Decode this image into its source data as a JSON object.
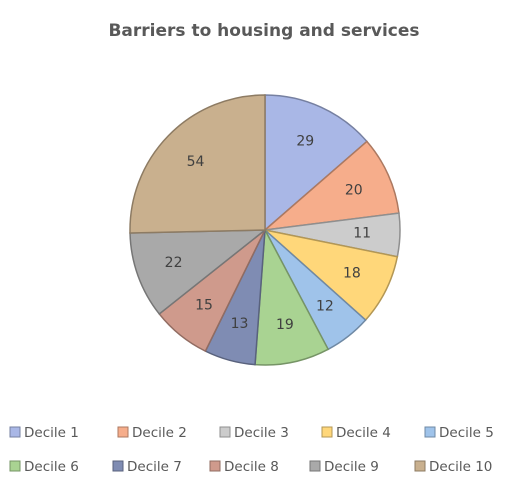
{
  "chart_data": {
    "type": "pie",
    "title": "Barriers to housing and services",
    "categories": [
      "Decile 1",
      "Decile 2",
      "Decile 3",
      "Decile 4",
      "Decile 5",
      "Decile 6",
      "Decile 7",
      "Decile 8",
      "Decile 9",
      "Decile 10"
    ],
    "values": [
      29,
      20,
      11,
      18,
      12,
      19,
      13,
      15,
      22,
      54
    ],
    "colors": [
      "#a9b7e6",
      "#f6ad8b",
      "#cccccc",
      "#ffd77a",
      "#9fc3ea",
      "#a9d392",
      "#7f8cb3",
      "#cf9a8c",
      "#a9a9a9",
      "#c9b08e"
    ],
    "legend": "bottom"
  }
}
